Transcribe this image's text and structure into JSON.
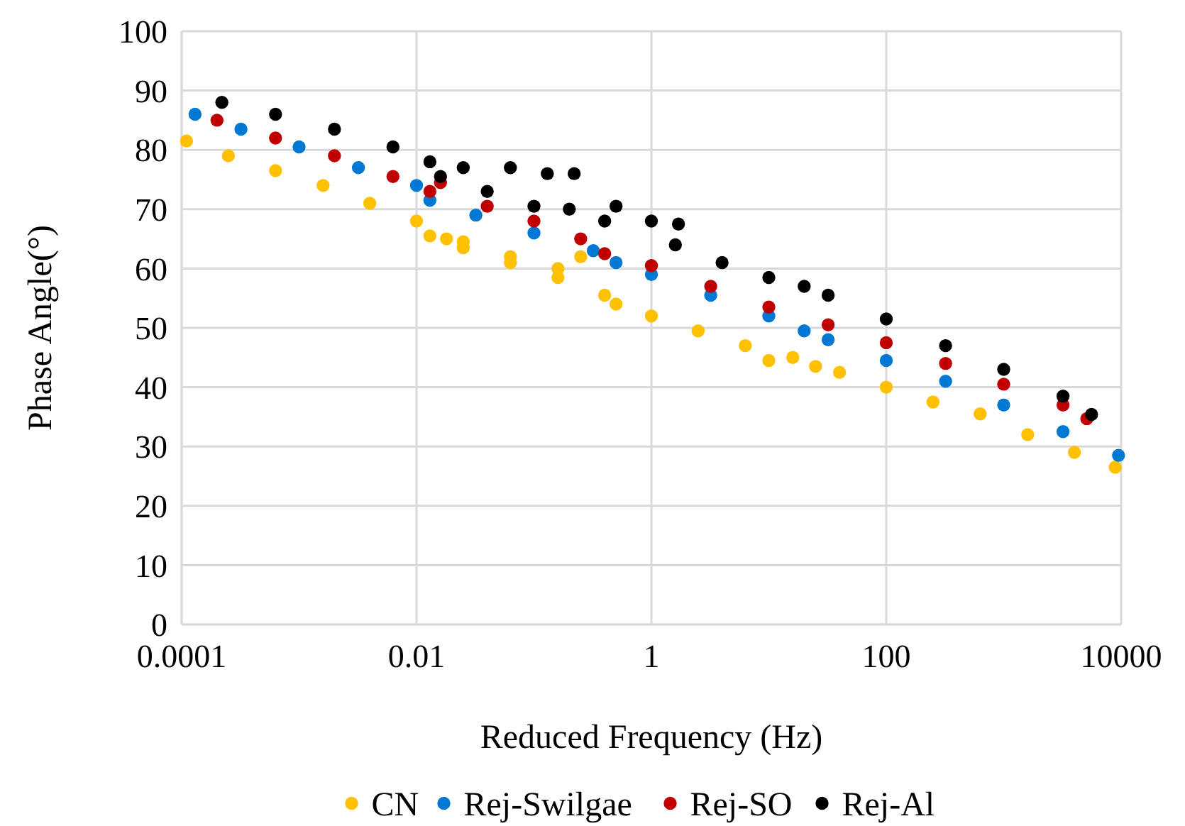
{
  "chart_data": {
    "type": "scatter",
    "xlabel": "Reduced Frequency (Hz)",
    "ylabel": "Phase Angle(°)",
    "log": "x",
    "xlim": [
      0.0001,
      10000
    ],
    "xticks": [
      0.0001,
      0.01,
      1,
      100,
      10000
    ],
    "ylim": [
      0,
      100
    ],
    "yticks": [
      0,
      10,
      20,
      30,
      40,
      50,
      60,
      70,
      80,
      90,
      100
    ],
    "grid": true,
    "legend": "bottom",
    "marker": "circle",
    "series": [
      {
        "name": "CN",
        "color": "#ffc000",
        "x": [
          0.00011,
          0.00025,
          0.00063,
          0.0016,
          0.004,
          0.01,
          0.013,
          0.018,
          0.025,
          0.025,
          0.063,
          0.063,
          0.16,
          0.16,
          0.25,
          0.4,
          0.5,
          1,
          2.5,
          6.3,
          10,
          16,
          25,
          40,
          100,
          250,
          630,
          1600,
          4000,
          8900
        ],
        "values": [
          81.5,
          79,
          76.5,
          74,
          71,
          68,
          65.5,
          65,
          63.5,
          64.5,
          61,
          62,
          58.5,
          60,
          62,
          55.5,
          54,
          52,
          49.5,
          47,
          44.5,
          45,
          43.5,
          42.5,
          40,
          37.5,
          35.5,
          32,
          29,
          26.5
        ]
      },
      {
        "name": "Rej-Swilgae",
        "color": "#0078d4",
        "x": [
          0.00013,
          0.00032,
          0.001,
          0.0032,
          0.01,
          0.013,
          0.032,
          0.1,
          0.32,
          0.5,
          1,
          3.2,
          10,
          20,
          32,
          100,
          320,
          1000,
          3200,
          9500
        ],
        "values": [
          86,
          83.5,
          80.5,
          77,
          74,
          71.5,
          69,
          66,
          63,
          61,
          59,
          55.5,
          52,
          49.5,
          48,
          44.5,
          41,
          37,
          32.5,
          28.5
        ]
      },
      {
        "name": "Rej-SO",
        "color": "#c00000",
        "x": [
          0.0002,
          0.00063,
          0.002,
          0.0063,
          0.013,
          0.016,
          0.04,
          0.1,
          0.25,
          0.4,
          1,
          3.2,
          10,
          32,
          100,
          320,
          1000,
          3200,
          5100
        ],
        "values": [
          85,
          82,
          79,
          75.5,
          73,
          74.5,
          70.5,
          68,
          65,
          62.5,
          60.5,
          57,
          53.5,
          50.5,
          47.5,
          44,
          40.5,
          37,
          34.7
        ]
      },
      {
        "name": "Rej-Al",
        "color": "#000000",
        "x": [
          0.00022,
          0.00063,
          0.002,
          0.0063,
          0.013,
          0.016,
          0.025,
          0.04,
          0.063,
          0.1,
          0.13,
          0.2,
          0.22,
          0.4,
          0.5,
          1,
          1.6,
          1.7,
          4,
          10,
          20,
          32,
          100,
          320,
          1000,
          3200,
          5600
        ],
        "values": [
          88,
          86,
          83.5,
          80.5,
          78,
          75.5,
          77,
          73,
          77,
          70.5,
          76,
          70,
          76,
          68,
          70.5,
          68,
          64,
          67.5,
          61,
          58.5,
          57,
          55.5,
          51.5,
          47,
          43,
          38.5,
          35.4
        ]
      }
    ]
  }
}
